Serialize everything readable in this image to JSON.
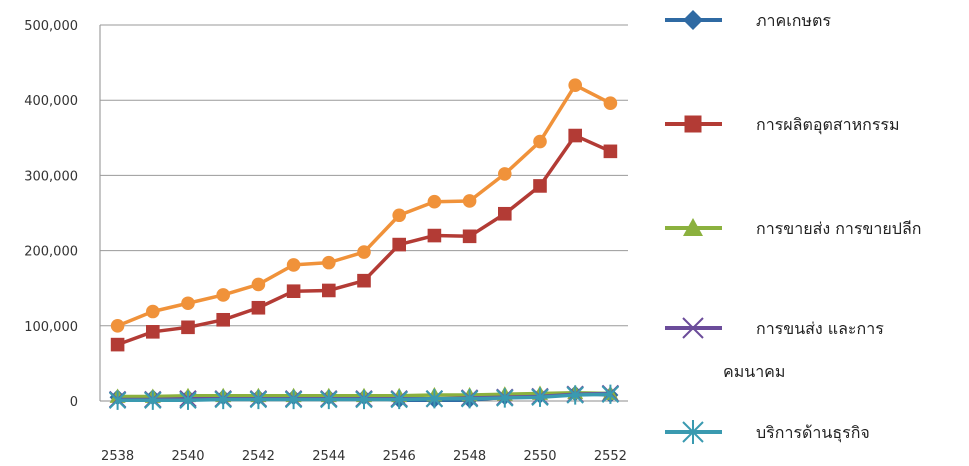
{
  "chart_data": {
    "type": "line",
    "title": "",
    "xlabel": "",
    "ylabel": "",
    "ylim": [
      0,
      500000
    ],
    "yticks": [
      "0",
      "100,000",
      "200,000",
      "300,000",
      "400,000",
      "500,000"
    ],
    "ytick_values": [
      0,
      100000,
      200000,
      300000,
      400000,
      500000
    ],
    "x": [
      2538,
      2539,
      2540,
      2541,
      2542,
      2543,
      2544,
      2545,
      2546,
      2547,
      2548,
      2549,
      2550,
      2551,
      2552
    ],
    "xticks": [
      "2538",
      "2540",
      "2542",
      "2544",
      "2546",
      "2548",
      "2550",
      "2552"
    ],
    "grid": true,
    "legend_position": "right",
    "series": [
      {
        "name": "ภาคเกษตร",
        "color": "#2f6aa3",
        "marker": "diamond",
        "values": [
          5000,
          5000,
          5000,
          5000,
          5000,
          5000,
          5000,
          5000,
          1000,
          1000,
          1000,
          5000,
          7000,
          10000,
          8000
        ]
      },
      {
        "name": "การผลิตอุตสาหกรรม",
        "color": "#b33b35",
        "marker": "square",
        "values": [
          75000,
          92000,
          98000,
          108000,
          124000,
          146000,
          147000,
          160000,
          208000,
          220000,
          219000,
          249000,
          286000,
          353000,
          332000
        ]
      },
      {
        "name": "การขายส่ง การขายปลีก",
        "color": "#8bb13e",
        "marker": "triangle",
        "values": [
          6000,
          6000,
          7000,
          7000,
          7000,
          7000,
          7000,
          7000,
          7000,
          8000,
          8000,
          9000,
          10000,
          11000,
          10000
        ]
      },
      {
        "name_lines": [
          "การขนส่ง และการ",
          "คมนาคม"
        ],
        "name": "การขนส่ง และการคมนาคม",
        "color": "#6b4c9a",
        "marker": "x",
        "values": [
          2000,
          2000,
          3000,
          3000,
          3000,
          3000,
          3000,
          3000,
          3000,
          3000,
          4000,
          5000,
          6000,
          9000,
          10000
        ]
      },
      {
        "name": "บริการด้านธุรกิจ",
        "color": "#3a9ab0",
        "marker": "star",
        "values": [
          1000,
          1000,
          1000,
          2000,
          2000,
          2000,
          2000,
          2000,
          2000,
          3000,
          3000,
          4000,
          5000,
          8000,
          9000
        ]
      },
      {
        "name": "",
        "color": "#f0923a",
        "marker": "circle",
        "values": [
          100000,
          119000,
          130000,
          141000,
          155000,
          181000,
          184000,
          198000,
          247000,
          265000,
          266000,
          302000,
          345000,
          420000,
          396000
        ]
      }
    ]
  }
}
